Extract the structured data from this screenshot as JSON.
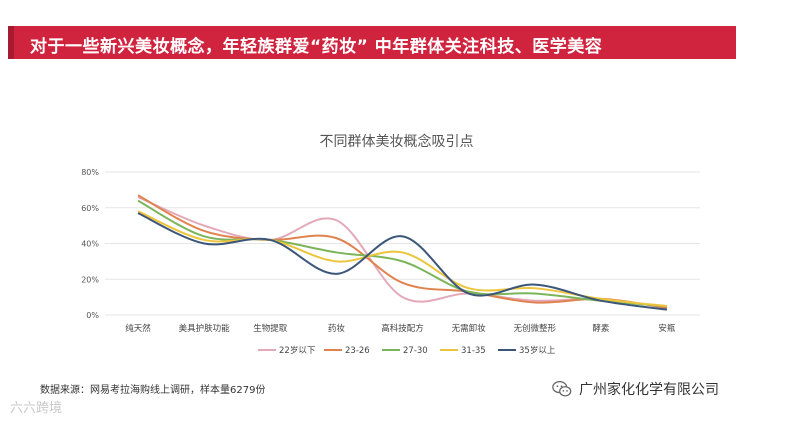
{
  "banner": {
    "text": "对于一些新兴美妆概念，年轻族群爱“药妆”  中年群体关注科技、医学美容"
  },
  "source_text": "数据来源：网易考拉海购线上调研，样本量6279份",
  "watermark_left": "六六跨境",
  "wechat": {
    "account_name": "广州家化化学有限公司",
    "icon": "wechat-icon"
  },
  "colors": {
    "banner": "#d0233e",
    "grid": "#e6e6e6"
  },
  "chart_data": {
    "type": "line",
    "title": "不同群体美妆概念吸引点",
    "categories": [
      "纯天然",
      "美具护肤功能",
      "生物提取",
      "药妆",
      "高科技配方",
      "无需卸妆",
      "无创微整形",
      "酵素",
      "安瓶"
    ],
    "ylim": [
      0,
      80
    ],
    "yticks": [
      "0%",
      "20%",
      "40%",
      "60%",
      "80%"
    ],
    "grid": true,
    "legend_position": "bottom",
    "smooth": true,
    "series": [
      {
        "name": "22岁以下",
        "color": "#e3a9b9",
        "values": [
          66,
          50,
          42,
          53,
          10,
          12,
          8,
          9,
          4
        ]
      },
      {
        "name": "23-26",
        "color": "#e0824e",
        "values": [
          67,
          47,
          42,
          43,
          18,
          13,
          7,
          9,
          4
        ]
      },
      {
        "name": "27-30",
        "color": "#7bb55a",
        "values": [
          64,
          44,
          42,
          35,
          30,
          13,
          12,
          8,
          5
        ]
      },
      {
        "name": "31-35",
        "color": "#edc53d",
        "values": [
          58,
          42,
          42,
          30,
          35,
          15,
          15,
          9,
          5
        ]
      },
      {
        "name": "35岁以上",
        "color": "#3c567a",
        "values": [
          57,
          40,
          42,
          23,
          44,
          12,
          17,
          8,
          3
        ]
      }
    ]
  }
}
